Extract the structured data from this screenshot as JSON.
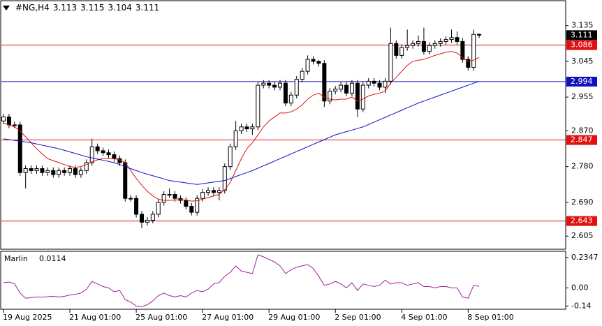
{
  "header": {
    "symbol": "#NG,H4"
  },
  "chart_data": [
    {
      "type": "candlestick",
      "categories": [
        "19 Aug 2025",
        null,
        null,
        null,
        null,
        null,
        null,
        null,
        null,
        null,
        null,
        null,
        "21 Aug 01:00",
        null,
        null,
        null,
        null,
        null,
        null,
        null,
        null,
        null,
        null,
        null,
        "25 Aug 01:00",
        null,
        null,
        null,
        null,
        null,
        null,
        null,
        null,
        null,
        null,
        null,
        "27 Aug 01:00",
        null,
        null,
        null,
        null,
        null,
        null,
        null,
        null,
        null,
        null,
        null,
        "29 Aug 01:00",
        null,
        null,
        null,
        null,
        null,
        null,
        null,
        null,
        null,
        null,
        null,
        "2 Sep 01:00",
        null,
        null,
        null,
        null,
        null,
        null,
        null,
        null,
        null,
        null,
        null,
        "4 Sep 01:00",
        null,
        null,
        null,
        null,
        null,
        null,
        null,
        null,
        null,
        null,
        null,
        "8 Sep 01:00",
        null,
        null
      ],
      "open": [
        2.895,
        2.905,
        2.885,
        2.885,
        2.765,
        2.775,
        2.77,
        2.775,
        2.765,
        2.77,
        2.76,
        2.77,
        2.765,
        2.775,
        2.76,
        2.77,
        2.79,
        2.83,
        2.82,
        2.815,
        2.81,
        2.8,
        2.79,
        2.7,
        2.7,
        2.66,
        2.64,
        2.645,
        2.66,
        2.69,
        2.71,
        2.71,
        2.7,
        2.695,
        2.68,
        2.665,
        2.7,
        2.715,
        2.72,
        2.715,
        2.72,
        2.78,
        2.83,
        2.87,
        2.88,
        2.875,
        2.88,
        2.985,
        2.99,
        2.985,
        2.98,
        2.99,
        2.94,
        2.96,
        3.0,
        3.02,
        3.05,
        3.045,
        3.04,
        2.945,
        2.97,
        2.975,
        2.985,
        2.965,
        2.99,
        2.925,
        2.985,
        2.995,
        2.99,
        2.98,
        2.995,
        3.09,
        3.06,
        3.08,
        3.085,
        3.09,
        3.095,
        3.07,
        3.085,
        3.09,
        3.095,
        3.1,
        3.105,
        3.095,
        3.05,
        3.03,
        3.113
      ],
      "high": [
        2.913,
        2.913,
        2.893,
        2.893,
        2.783,
        2.783,
        2.783,
        2.783,
        2.778,
        2.778,
        2.778,
        2.778,
        2.783,
        2.783,
        2.778,
        2.798,
        2.85,
        2.838,
        2.828,
        2.823,
        2.818,
        2.808,
        2.798,
        2.708,
        2.708,
        2.668,
        2.653,
        2.668,
        2.698,
        2.718,
        2.725,
        2.718,
        2.708,
        2.703,
        2.688,
        2.708,
        2.723,
        2.728,
        2.728,
        2.728,
        2.788,
        2.838,
        2.895,
        2.888,
        2.888,
        2.888,
        2.993,
        2.998,
        2.998,
        2.993,
        2.998,
        2.998,
        2.968,
        3.008,
        3.028,
        3.06,
        3.058,
        3.048,
        3.048,
        2.978,
        2.983,
        2.993,
        2.993,
        2.998,
        2.998,
        2.993,
        3.003,
        3.003,
        2.998,
        3.003,
        3.13,
        3.098,
        3.088,
        3.125,
        3.098,
        3.11,
        3.13,
        3.093,
        3.098,
        3.103,
        3.108,
        3.125,
        3.12,
        3.103,
        3.058,
        3.125,
        3.115
      ],
      "low": [
        2.887,
        2.877,
        2.877,
        2.757,
        2.725,
        2.762,
        2.762,
        2.757,
        2.757,
        2.752,
        2.752,
        2.757,
        2.757,
        2.752,
        2.752,
        2.762,
        2.782,
        2.812,
        2.807,
        2.802,
        2.792,
        2.782,
        2.692,
        2.692,
        2.652,
        2.625,
        2.632,
        2.637,
        2.652,
        2.682,
        2.702,
        2.692,
        2.687,
        2.672,
        2.657,
        2.657,
        2.692,
        2.707,
        2.707,
        2.695,
        2.712,
        2.772,
        2.822,
        2.862,
        2.867,
        2.86,
        2.872,
        2.977,
        2.977,
        2.972,
        2.972,
        2.932,
        2.932,
        2.952,
        2.992,
        3.012,
        3.037,
        3.032,
        2.93,
        2.937,
        2.962,
        2.967,
        2.957,
        2.957,
        2.905,
        2.917,
        2.977,
        2.982,
        2.972,
        2.965,
        2.987,
        3.052,
        3.052,
        3.072,
        3.077,
        3.082,
        3.062,
        3.062,
        3.077,
        3.082,
        3.087,
        3.092,
        3.087,
        3.042,
        3.022,
        3.022,
        3.104
      ],
      "close": [
        2.905,
        2.885,
        2.885,
        2.765,
        2.775,
        2.77,
        2.775,
        2.765,
        2.77,
        2.76,
        2.77,
        2.765,
        2.775,
        2.76,
        2.77,
        2.79,
        2.83,
        2.82,
        2.815,
        2.81,
        2.8,
        2.79,
        2.7,
        2.7,
        2.66,
        2.64,
        2.645,
        2.66,
        2.69,
        2.71,
        2.71,
        2.7,
        2.695,
        2.68,
        2.665,
        2.7,
        2.715,
        2.72,
        2.715,
        2.72,
        2.78,
        2.83,
        2.87,
        2.88,
        2.875,
        2.88,
        2.985,
        2.99,
        2.985,
        2.98,
        2.99,
        2.94,
        2.96,
        3.0,
        3.02,
        3.05,
        3.045,
        3.04,
        2.945,
        2.97,
        2.975,
        2.985,
        2.965,
        2.99,
        2.925,
        2.985,
        2.995,
        2.99,
        2.98,
        2.995,
        3.09,
        3.06,
        3.08,
        3.085,
        3.09,
        3.095,
        3.07,
        3.085,
        3.09,
        3.095,
        3.1,
        3.105,
        3.095,
        3.05,
        3.03,
        3.113,
        3.111
      ],
      "up_color": "#ffffff",
      "down_color": "#000000",
      "wick_color": "#000000",
      "lines": [
        {
          "color": "#e01010",
          "values": [
            2.89,
            2.885,
            2.88,
            2.87,
            2.855,
            2.84,
            2.825,
            2.812,
            2.8,
            2.795,
            2.79,
            2.785,
            2.78,
            2.778,
            2.78,
            2.785,
            2.792,
            2.797,
            2.8,
            2.8,
            2.8,
            2.797,
            2.79,
            2.77,
            2.75,
            2.733,
            2.718,
            2.706,
            2.698,
            2.695,
            2.695,
            2.696,
            2.697,
            2.696,
            2.693,
            2.694,
            2.698,
            2.702,
            2.706,
            2.71,
            2.722,
            2.74,
            2.77,
            2.8,
            2.825,
            2.84,
            2.86,
            2.88,
            2.895,
            2.905,
            2.915,
            2.915,
            2.918,
            2.925,
            2.935,
            2.95,
            2.96,
            2.965,
            2.955,
            2.95,
            2.948,
            2.95,
            2.95,
            2.955,
            2.945,
            2.95,
            2.958,
            2.962,
            2.965,
            2.97,
            2.99,
            3.005,
            3.02,
            3.035,
            3.045,
            3.048,
            3.05,
            3.055,
            3.06,
            3.064,
            3.068,
            3.07,
            3.066,
            3.055,
            3.045,
            3.048,
            3.055
          ]
        },
        {
          "color": "#1010c0",
          "values": [
            2.85,
            2.848,
            2.846,
            2.844,
            2.842,
            2.84,
            2.837,
            2.834,
            2.831,
            2.828,
            2.825,
            2.821,
            2.817,
            2.813,
            2.809,
            2.805,
            2.802,
            2.799,
            2.796,
            2.793,
            2.79,
            2.785,
            2.78,
            2.775,
            2.77,
            2.765,
            2.761,
            2.757,
            2.753,
            2.749,
            2.745,
            2.743,
            2.741,
            2.739,
            2.737,
            2.735,
            2.737,
            2.739,
            2.741,
            2.743,
            2.745,
            2.75,
            2.755,
            2.76,
            2.765,
            2.77,
            2.776,
            2.782,
            2.788,
            2.794,
            2.8,
            2.806,
            2.812,
            2.818,
            2.824,
            2.83,
            2.836,
            2.842,
            2.848,
            2.854,
            2.86,
            2.864,
            2.868,
            2.872,
            2.876,
            2.88,
            2.886,
            2.892,
            2.898,
            2.904,
            2.91,
            2.916,
            2.922,
            2.928,
            2.934,
            2.94,
            2.945,
            2.95,
            2.955,
            2.96,
            2.965,
            2.97,
            2.975,
            2.98,
            2.985,
            2.99,
            2.995
          ]
        }
      ],
      "hlines": [
        {
          "value": 3.086,
          "color": "#e01010"
        },
        {
          "value": 2.994,
          "color": "#1010c0"
        },
        {
          "value": 2.847,
          "color": "#e01010"
        },
        {
          "value": 2.643,
          "color": "#e01010"
        }
      ],
      "ylim": [
        2.572,
        3.196
      ],
      "yticks": [
        3.135,
        3.045,
        2.955,
        {
          "value": 2.87,
          "label": "2.870"
        },
        {
          "value": 2.78,
          "label": "2.780"
        },
        {
          "value": 2.69,
          "label": "2.690"
        },
        2.605
      ]
    },
    {
      "type": "line",
      "title": "Marlin",
      "color": "#a020a0",
      "values": [
        0.04,
        0.045,
        0.03,
        -0.04,
        -0.08,
        -0.075,
        -0.07,
        -0.072,
        -0.068,
        -0.065,
        -0.07,
        -0.065,
        -0.055,
        -0.05,
        -0.04,
        -0.01,
        0.05,
        0.03,
        0.01,
        0.0,
        -0.03,
        -0.02,
        -0.09,
        -0.11,
        -0.14,
        -0.145,
        -0.13,
        -0.1,
        -0.06,
        -0.04,
        -0.06,
        -0.07,
        -0.06,
        -0.07,
        -0.04,
        -0.02,
        -0.03,
        -0.01,
        0.03,
        0.04,
        0.09,
        0.12,
        0.17,
        0.13,
        0.12,
        0.11,
        0.255,
        0.24,
        0.22,
        0.2,
        0.17,
        0.11,
        0.14,
        0.16,
        0.17,
        0.18,
        0.15,
        0.09,
        0.02,
        0.03,
        0.05,
        0.03,
        0.0,
        0.04,
        -0.02,
        0.03,
        0.02,
        0.01,
        0.02,
        0.06,
        0.03,
        0.04,
        0.04,
        0.02,
        0.03,
        0.04,
        0.01,
        0.01,
        0.0,
        0.01,
        0.01,
        0.0,
        0.0,
        -0.07,
        -0.08,
        0.02,
        0.0114
      ],
      "ylim": [
        -0.165,
        0.277
      ],
      "yticks": [
        0.2347,
        {
          "value": 0,
          "label": "0.00"
        },
        -0.14
      ]
    }
  ]
}
